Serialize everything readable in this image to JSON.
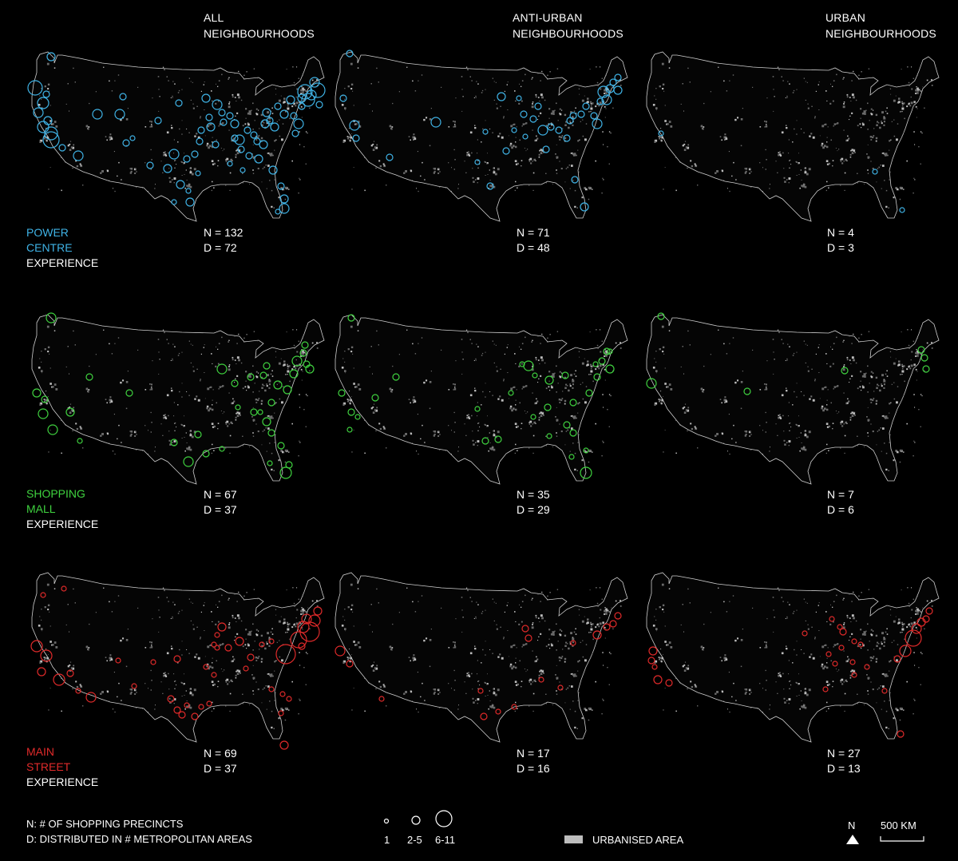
{
  "columns": [
    {
      "line1": "ALL",
      "line2": "NEIGHBOURHOODS"
    },
    {
      "line1": "ANTI-URBAN",
      "line2": "NEIGHBOURHOODS"
    },
    {
      "line1": "URBAN",
      "line2": "NEIGHBOURHOODS"
    }
  ],
  "rows": [
    {
      "label1": "POWER",
      "label2": "CENTRE",
      "label3": "EXPERIENCE",
      "color": "#3fb3e6",
      "panels": [
        {
          "n": "N = 132",
          "d": "D = 72"
        },
        {
          "n": "N = 71",
          "d": "D = 48"
        },
        {
          "n": "N = 4",
          "d": "D = 3"
        }
      ]
    },
    {
      "label1": "SHOPPING",
      "label2": "MALL",
      "label3": "EXPERIENCE",
      "color": "#3fd23f",
      "panels": [
        {
          "n": "N = 67",
          "d": "D = 37"
        },
        {
          "n": "N = 35",
          "d": "D = 29"
        },
        {
          "n": "N = 7",
          "d": "D = 6"
        }
      ]
    },
    {
      "label1": "MAIN",
      "label2": "STREET",
      "label3": "EXPERIENCE",
      "color": "#e02a2a",
      "panels": [
        {
          "n": "N = 69",
          "d": "D = 37"
        },
        {
          "n": "N = 17",
          "d": "D = 16"
        },
        {
          "n": "N = 27",
          "d": "D = 13"
        }
      ]
    }
  ],
  "legend": {
    "n_text": "N: # OF SHOPPING PRECINCTS",
    "d_text": "D: DISTRIBUTED IN # METROPOLITAN AREAS",
    "size_labels": [
      "1",
      "2-5",
      "6-11"
    ],
    "urban_label": "URBANISED AREA",
    "north_label": "N",
    "scale_label": "500 KM"
  }
}
